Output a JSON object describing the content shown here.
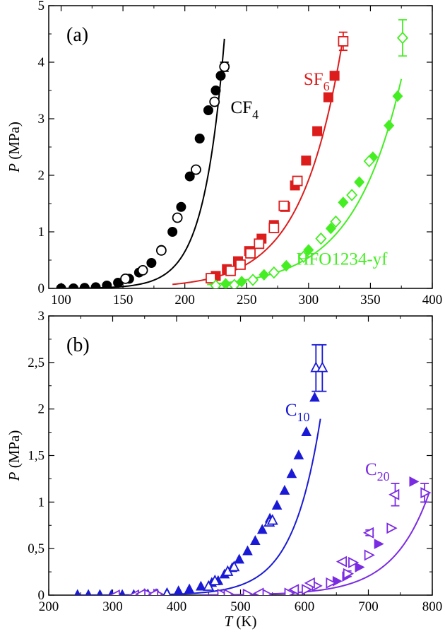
{
  "chart_data": [
    {
      "type": "scatter",
      "panel_label": "(a)",
      "xlabel": "",
      "ylabel": "P (MPa)",
      "ylabel_italic": "P",
      "ylabel_unit": " (MPa)",
      "xlim": [
        90,
        400
      ],
      "ylim": [
        0,
        5
      ],
      "xticks": [
        100,
        150,
        200,
        250,
        300,
        350,
        400
      ],
      "xtick_labels": [
        "100",
        "150",
        "200",
        "250",
        "300",
        "350",
        "400"
      ],
      "yticks": [
        0,
        1,
        2,
        3,
        4,
        5
      ],
      "ytick_labels": [
        "0",
        "1",
        "2",
        "3",
        "4",
        "5"
      ],
      "series": [
        {
          "name": "CF4",
          "label_main": "CF",
          "label_sub": "4",
          "color": "#000000",
          "label_at": [
            237,
            3.1
          ],
          "curve": {
            "A": 4.117e-06,
            "B": 0.05985,
            "xmin": 100,
            "xmax": 232
          },
          "filled": [
            {
              "x": 100,
              "y": 0.0
            },
            {
              "x": 110,
              "y": 0.0
            },
            {
              "x": 119,
              "y": 0.01
            },
            {
              "x": 128,
              "y": 0.02
            },
            {
              "x": 137,
              "y": 0.05
            },
            {
              "x": 146,
              "y": 0.1
            },
            {
              "x": 155,
              "y": 0.17
            },
            {
              "x": 163,
              "y": 0.28
            },
            {
              "x": 173,
              "y": 0.45
            },
            {
              "x": 181,
              "y": 0.68
            },
            {
              "x": 190,
              "y": 1.0
            },
            {
              "x": 197,
              "y": 1.44
            },
            {
              "x": 204,
              "y": 1.98
            },
            {
              "x": 212,
              "y": 2.65
            },
            {
              "x": 219,
              "y": 3.15
            },
            {
              "x": 225,
              "y": 3.5
            },
            {
              "x": 229,
              "y": 3.76
            }
          ],
          "open": [
            {
              "x": 152,
              "y": 0.17
            },
            {
              "x": 166,
              "y": 0.32
            },
            {
              "x": 181,
              "y": 0.67
            },
            {
              "x": 194,
              "y": 1.25
            },
            {
              "x": 209,
              "y": 2.1
            },
            {
              "x": 224,
              "y": 3.3
            },
            {
              "x": 232,
              "y": 3.92
            }
          ],
          "open_errors": [
            {
              "x": 232,
              "y": 3.92,
              "err": 0.08
            }
          ],
          "open_marker": "circle",
          "filled_marker": "circle"
        },
        {
          "name": "SF6",
          "label_main": "SF",
          "label_sub": "6",
          "color": "#dd1c1c",
          "label_at": [
            296,
            3.6
          ],
          "curve": {
            "A": 0.0002345,
            "B": 0.03003,
            "xmin": 190,
            "xmax": 327
          },
          "filled": [
            {
              "x": 225,
              "y": 0.22
            },
            {
              "x": 234,
              "y": 0.34
            },
            {
              "x": 243,
              "y": 0.48
            },
            {
              "x": 252,
              "y": 0.66
            },
            {
              "x": 262,
              "y": 0.88
            },
            {
              "x": 272,
              "y": 1.12
            },
            {
              "x": 281,
              "y": 1.44
            },
            {
              "x": 289,
              "y": 1.82
            },
            {
              "x": 298,
              "y": 2.26
            },
            {
              "x": 307,
              "y": 2.78
            },
            {
              "x": 316,
              "y": 3.38
            },
            {
              "x": 321,
              "y": 3.76
            }
          ],
          "open": [
            {
              "x": 221,
              "y": 0.18
            },
            {
              "x": 237,
              "y": 0.31
            },
            {
              "x": 245,
              "y": 0.42
            },
            {
              "x": 253,
              "y": 0.62
            },
            {
              "x": 260,
              "y": 0.79
            },
            {
              "x": 272,
              "y": 1.07
            },
            {
              "x": 280,
              "y": 1.46
            },
            {
              "x": 291,
              "y": 1.9
            },
            {
              "x": 328,
              "y": 4.37
            }
          ],
          "open_errors": [
            {
              "x": 328,
              "y": 4.37,
              "err": 0.16
            }
          ],
          "open_marker": "square",
          "filled_marker": "square"
        },
        {
          "name": "HFO1234-yf",
          "label_main": "HFO1234-yf",
          "label_sub": "",
          "color": "#44ee22",
          "label_at": [
            290,
            0.42
          ],
          "curve": {
            "A": 0.0002565,
            "B": 0.02554,
            "xmin": 218,
            "xmax": 375
          },
          "filled": [
            {
              "x": 233,
              "y": 0.08
            },
            {
              "x": 246,
              "y": 0.12
            },
            {
              "x": 264,
              "y": 0.24
            },
            {
              "x": 282,
              "y": 0.4
            },
            {
              "x": 300,
              "y": 0.68
            },
            {
              "x": 318,
              "y": 1.06
            },
            {
              "x": 328,
              "y": 1.52
            },
            {
              "x": 341,
              "y": 1.88
            },
            {
              "x": 352,
              "y": 2.32
            },
            {
              "x": 365,
              "y": 2.88
            },
            {
              "x": 372,
              "y": 3.4
            }
          ],
          "open": [
            {
              "x": 225,
              "y": 0.05
            },
            {
              "x": 240,
              "y": 0.06
            },
            {
              "x": 255,
              "y": 0.15
            },
            {
              "x": 272,
              "y": 0.28
            },
            {
              "x": 296,
              "y": 0.56
            },
            {
              "x": 310,
              "y": 0.88
            },
            {
              "x": 322,
              "y": 1.18
            },
            {
              "x": 335,
              "y": 1.65
            },
            {
              "x": 349,
              "y": 2.25
            },
            {
              "x": 376,
              "y": 4.43
            }
          ],
          "open_errors": [
            {
              "x": 376,
              "y": 4.43,
              "err": 0.32
            }
          ],
          "open_marker": "diamond",
          "filled_marker": "diamond"
        }
      ]
    },
    {
      "type": "scatter",
      "panel_label": "(b)",
      "xlabel": "T (K)",
      "xlabel_italic": "T",
      "xlabel_unit": " (K)",
      "ylabel": "P (MPa)",
      "ylabel_italic": "P",
      "ylabel_unit": " (MPa)",
      "xlim": [
        200,
        800
      ],
      "ylim": [
        0,
        3
      ],
      "xticks": [
        200,
        300,
        400,
        500,
        600,
        700,
        800
      ],
      "xtick_labels": [
        "200",
        "300",
        "400",
        "500",
        "600",
        "700",
        "800"
      ],
      "yticks": [
        0,
        0.5,
        1,
        1.5,
        2,
        2.5,
        3
      ],
      "ytick_labels": [
        "0",
        "0,5",
        "1",
        "1,5",
        "2",
        "2,5",
        "3"
      ],
      "series": [
        {
          "name": "C10",
          "label_main": "C",
          "label_sub": "10",
          "color": "#1a1ad6",
          "label_at": [
            570,
            1.93
          ],
          "curve": {
            "A": 1.117e-06,
            "B": 0.02295,
            "xmin": 240,
            "xmax": 625
          },
          "filled": [
            {
              "x": 245,
              "y": 0.0
            },
            {
              "x": 262,
              "y": 0.0
            },
            {
              "x": 280,
              "y": 0.0
            },
            {
              "x": 298,
              "y": 0.0
            },
            {
              "x": 315,
              "y": 0.0
            },
            {
              "x": 333,
              "y": 0.0
            },
            {
              "x": 350,
              "y": 0.01
            },
            {
              "x": 368,
              "y": 0.01
            },
            {
              "x": 385,
              "y": 0.02
            },
            {
              "x": 403,
              "y": 0.04
            },
            {
              "x": 420,
              "y": 0.06
            },
            {
              "x": 438,
              "y": 0.09
            },
            {
              "x": 455,
              "y": 0.13
            },
            {
              "x": 465,
              "y": 0.15
            },
            {
              "x": 475,
              "y": 0.22
            },
            {
              "x": 487,
              "y": 0.29
            },
            {
              "x": 498,
              "y": 0.38
            },
            {
              "x": 511,
              "y": 0.47
            },
            {
              "x": 523,
              "y": 0.58
            },
            {
              "x": 534,
              "y": 0.7
            },
            {
              "x": 546,
              "y": 0.82
            },
            {
              "x": 557,
              "y": 0.96
            },
            {
              "x": 569,
              "y": 1.12
            },
            {
              "x": 580,
              "y": 1.3
            },
            {
              "x": 591,
              "y": 1.5
            },
            {
              "x": 603,
              "y": 1.75
            },
            {
              "x": 616,
              "y": 2.12
            }
          ],
          "open": [
            {
              "x": 355,
              "y": 0.0
            },
            {
              "x": 370,
              "y": 0.0
            },
            {
              "x": 385,
              "y": 0.01
            },
            {
              "x": 450,
              "y": 0.09
            },
            {
              "x": 460,
              "y": 0.15
            },
            {
              "x": 480,
              "y": 0.25
            },
            {
              "x": 490,
              "y": 0.3
            },
            {
              "x": 545,
              "y": 0.78
            },
            {
              "x": 550,
              "y": 0.8
            },
            {
              "x": 618,
              "y": 2.44
            },
            {
              "x": 628,
              "y": 2.44
            }
          ],
          "open_errors": [
            {
              "x": 618,
              "y": 2.44,
              "err": 0.25
            },
            {
              "x": 628,
              "y": 2.44,
              "err": 0.25
            }
          ],
          "open_marker": "triangle",
          "filled_marker": "triangle"
        },
        {
          "name": "C20",
          "label_main": "C",
          "label_sub": "20",
          "color": "#7b2be2",
          "label_at": [
            695,
            1.29
          ],
          "curve": {
            "A": 8.234e-07,
            "B": 0.01774,
            "xmin": 440,
            "xmax": 795
          },
          "filled": [
            {
              "x": 650,
              "y": 0.15
            },
            {
              "x": 665,
              "y": 0.2
            },
            {
              "x": 685,
              "y": 0.3
            },
            {
              "x": 700,
              "y": 0.43
            },
            {
              "x": 715,
              "y": 0.55
            },
            {
              "x": 770,
              "y": 1.22
            }
          ],
          "open": [
            {
              "x": 355,
              "y": 0.01
            },
            {
              "x": 370,
              "y": 0.01
            },
            {
              "x": 470,
              "y": 0.01
            },
            {
              "x": 480,
              "y": 0.01
            },
            {
              "x": 510,
              "y": 0.01
            },
            {
              "x": 540,
              "y": 0.01
            },
            {
              "x": 575,
              "y": 0.02
            },
            {
              "x": 602,
              "y": 0.06
            },
            {
              "x": 618,
              "y": 0.1
            },
            {
              "x": 640,
              "y": 0.13
            },
            {
              "x": 667,
              "y": 0.23
            },
            {
              "x": 675,
              "y": 0.35
            },
            {
              "x": 700,
              "y": 0.43
            },
            {
              "x": 735,
              "y": 0.72
            },
            {
              "x": 788,
              "y": 1.1
            }
          ],
          "open_left": [
            {
              "x": 305,
              "y": 0.0
            },
            {
              "x": 335,
              "y": 0.0
            },
            {
              "x": 345,
              "y": 0.01
            },
            {
              "x": 365,
              "y": 0.01
            },
            {
              "x": 530,
              "y": 0.02
            },
            {
              "x": 585,
              "y": 0.06
            },
            {
              "x": 610,
              "y": 0.13
            },
            {
              "x": 660,
              "y": 0.36
            },
            {
              "x": 702,
              "y": 0.67
            },
            {
              "x": 742,
              "y": 1.08
            }
          ],
          "open_errors": [
            {
              "x": 742,
              "y": 1.08,
              "err": 0.12
            },
            {
              "x": 788,
              "y": 1.1,
              "err": 0.1
            },
            {
              "x": 667,
              "y": 0.23,
              "err": 0.03
            },
            {
              "x": 702,
              "y": 0.67,
              "err": 0.03
            }
          ],
          "open_marker": "triangle-right",
          "filled_marker": "triangle-right"
        }
      ]
    }
  ]
}
